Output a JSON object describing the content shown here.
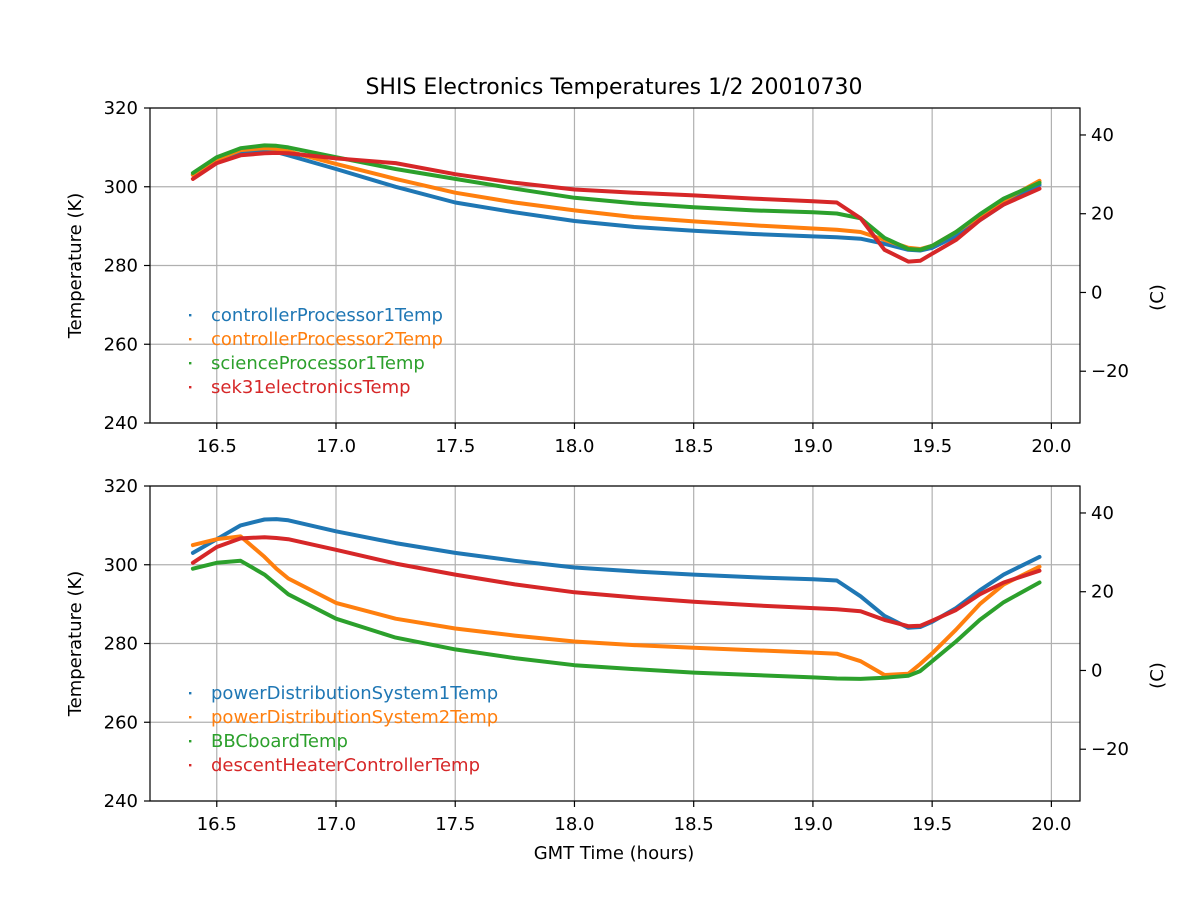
{
  "chart_data": [
    {
      "type": "line",
      "title": "SHIS Electronics Temperatures 1/2 20010730",
      "xlabel": "",
      "ylabel": "Temperature (K)",
      "ylabel_right": "(C)",
      "xlim": [
        16.22,
        20.12
      ],
      "ylim": [
        240,
        320
      ],
      "xticks": [
        16.5,
        17.0,
        17.5,
        18.0,
        18.5,
        19.0,
        19.5,
        20.0
      ],
      "xtick_labels": [
        "16.5",
        "17.0",
        "17.5",
        "18.0",
        "18.5",
        "19.0",
        "19.5",
        "20.0"
      ],
      "yticks": [
        240,
        260,
        280,
        300,
        320
      ],
      "ytick_labels": [
        "240",
        "260",
        "280",
        "300",
        "320"
      ],
      "yticks_right": [
        -20,
        0,
        20,
        40
      ],
      "ytick_labels_right": [
        "−20",
        "0",
        "20",
        "40"
      ],
      "grid": true,
      "legend": "lower-left",
      "x": [
        16.4,
        16.5,
        16.6,
        16.7,
        16.75,
        16.8,
        17.0,
        17.25,
        17.5,
        17.75,
        18.0,
        18.25,
        18.5,
        18.75,
        19.0,
        19.1,
        19.2,
        19.3,
        19.4,
        19.45,
        19.5,
        19.6,
        19.7,
        19.8,
        19.95
      ],
      "series": [
        {
          "name": "controllerProcessor1Temp",
          "color": "#1f77b4",
          "values": [
            303,
            306.5,
            308.5,
            309,
            308.8,
            308,
            304.5,
            300,
            296,
            293.5,
            291.3,
            289.8,
            288.8,
            288,
            287.4,
            287.2,
            286.8,
            285.5,
            284,
            283.8,
            284.5,
            287.5,
            291.5,
            295.5,
            300.5
          ]
        },
        {
          "name": "controllerProcessor2Temp",
          "color": "#ff7f0e",
          "values": [
            303,
            307,
            309.3,
            309.8,
            309.6,
            309,
            305.8,
            302,
            298.5,
            296,
            294,
            292.3,
            291.2,
            290.2,
            289.4,
            289.1,
            288.5,
            286.5,
            284.5,
            284.2,
            285,
            288.5,
            292.5,
            296.5,
            301.5
          ]
        },
        {
          "name": "scienceProcessor1Temp",
          "color": "#2ca02c",
          "values": [
            303.5,
            307.5,
            309.8,
            310.5,
            310.4,
            310,
            307.5,
            304.5,
            302,
            299.5,
            297.2,
            295.8,
            294.8,
            294,
            293.5,
            293.2,
            292,
            287,
            284.2,
            284,
            285,
            288.5,
            293,
            297,
            301
          ]
        },
        {
          "name": "sek31electronicsTemp",
          "color": "#d62728",
          "values": [
            302,
            306,
            308,
            308.5,
            308.6,
            308.5,
            307.2,
            306,
            303.2,
            301,
            299.3,
            298.5,
            297.8,
            297,
            296.3,
            296,
            292,
            284,
            281,
            281.2,
            283,
            286.5,
            291.5,
            295.5,
            299.5
          ]
        }
      ]
    },
    {
      "type": "line",
      "title": "",
      "xlabel": "GMT Time (hours)",
      "ylabel": "Temperature (K)",
      "ylabel_right": "(C)",
      "xlim": [
        16.22,
        20.12
      ],
      "ylim": [
        240,
        320
      ],
      "xticks": [
        16.5,
        17.0,
        17.5,
        18.0,
        18.5,
        19.0,
        19.5,
        20.0
      ],
      "xtick_labels": [
        "16.5",
        "17.0",
        "17.5",
        "18.0",
        "18.5",
        "19.0",
        "19.5",
        "20.0"
      ],
      "yticks": [
        240,
        260,
        280,
        300,
        320
      ],
      "ytick_labels": [
        "240",
        "260",
        "280",
        "300",
        "320"
      ],
      "yticks_right": [
        -20,
        0,
        20,
        40
      ],
      "ytick_labels_right": [
        "−20",
        "0",
        "20",
        "40"
      ],
      "grid": true,
      "legend": "lower-left",
      "x": [
        16.4,
        16.5,
        16.6,
        16.7,
        16.75,
        16.8,
        17.0,
        17.25,
        17.5,
        17.75,
        18.0,
        18.25,
        18.5,
        18.75,
        19.0,
        19.1,
        19.2,
        19.3,
        19.4,
        19.45,
        19.5,
        19.6,
        19.7,
        19.8,
        19.95
      ],
      "series": [
        {
          "name": "powerDistributionSystem1Temp",
          "color": "#1f77b4",
          "values": [
            303,
            306.5,
            310,
            311.5,
            311.6,
            311.3,
            308.5,
            305.5,
            303,
            301,
            299.3,
            298.3,
            297.5,
            296.8,
            296.3,
            296,
            292,
            287,
            284,
            284.2,
            285.5,
            289,
            293.5,
            297.5,
            302
          ]
        },
        {
          "name": "powerDistributionSystem2Temp",
          "color": "#ff7f0e",
          "values": [
            305,
            306.5,
            307.2,
            302,
            299,
            296.5,
            290.3,
            286.3,
            283.8,
            282,
            280.5,
            279.6,
            278.9,
            278.3,
            277.7,
            277.4,
            275.5,
            272,
            272.3,
            274.8,
            277.5,
            283.5,
            290,
            295,
            299.5
          ]
        },
        {
          "name": "BBCboardTemp",
          "color": "#2ca02c",
          "values": [
            299,
            300.5,
            301,
            297.5,
            295,
            292.5,
            286.3,
            281.5,
            278.5,
            276.3,
            274.5,
            273.5,
            272.6,
            272,
            271.4,
            271.1,
            271,
            271.3,
            271.8,
            273,
            275.5,
            280.5,
            286,
            290.5,
            295.5
          ]
        },
        {
          "name": "descentHeaterControllerTemp",
          "color": "#d62728",
          "values": [
            300.5,
            304.5,
            306.7,
            307,
            306.8,
            306.5,
            303.8,
            300.3,
            297.5,
            295,
            293,
            291.7,
            290.6,
            289.7,
            289,
            288.7,
            288.2,
            286,
            284.4,
            284.5,
            285.8,
            288.5,
            292.5,
            295.5,
            298.5
          ]
        }
      ]
    }
  ]
}
